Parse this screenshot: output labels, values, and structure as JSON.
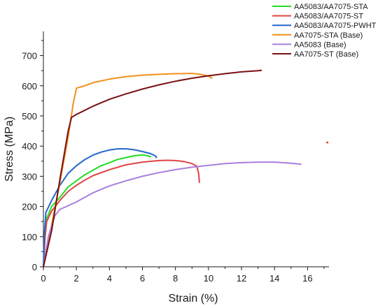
{
  "chart_data": {
    "type": "line",
    "title": "",
    "xlabel": "Strain (%)",
    "ylabel": "Stress (MPa)",
    "xlim": [
      0,
      17.3
    ],
    "ylim": [
      0,
      780
    ],
    "xticks": [
      0,
      2,
      4,
      6,
      8,
      10,
      12,
      14,
      16
    ],
    "yticks": [
      0,
      100,
      200,
      300,
      400,
      500,
      600,
      700
    ],
    "grid": false,
    "legend_position": "top-right",
    "series": [
      {
        "name": "AA5083/AA7075-STA",
        "color": "#22dd22",
        "points": [
          [
            0,
            0
          ],
          [
            0.1,
            100
          ],
          [
            0.2,
            160
          ],
          [
            0.5,
            200
          ],
          [
            1.0,
            230
          ],
          [
            1.5,
            265
          ],
          [
            2.0,
            285
          ],
          [
            2.5,
            305
          ],
          [
            3.0,
            320
          ],
          [
            3.5,
            335
          ],
          [
            4.0,
            345
          ],
          [
            4.5,
            356
          ],
          [
            5.0,
            362
          ],
          [
            5.5,
            368
          ],
          [
            6.0,
            371
          ],
          [
            6.3,
            368
          ],
          [
            6.5,
            365
          ]
        ]
      },
      {
        "name": "AA5083/AA7075-ST",
        "color": "#dd4444",
        "points": [
          [
            0,
            0
          ],
          [
            0.1,
            100
          ],
          [
            0.2,
            150
          ],
          [
            0.5,
            185
          ],
          [
            1.0,
            220
          ],
          [
            1.5,
            250
          ],
          [
            2.0,
            270
          ],
          [
            2.5,
            287
          ],
          [
            3.0,
            302
          ],
          [
            4.0,
            322
          ],
          [
            5.0,
            338
          ],
          [
            6.0,
            347
          ],
          [
            7.0,
            352
          ],
          [
            7.5,
            353
          ],
          [
            8.0,
            352
          ],
          [
            8.5,
            349
          ],
          [
            9.0,
            342
          ],
          [
            9.3,
            333
          ],
          [
            9.4,
            310
          ],
          [
            9.45,
            280
          ]
        ]
      },
      {
        "name": "AA5083/AA7075-PWHT",
        "color": "#2266cc",
        "points": [
          [
            0,
            0
          ],
          [
            0.05,
            100
          ],
          [
            0.15,
            180
          ],
          [
            0.5,
            220
          ],
          [
            1.0,
            270
          ],
          [
            1.5,
            310
          ],
          [
            2.0,
            335
          ],
          [
            2.5,
            355
          ],
          [
            3.0,
            370
          ],
          [
            3.5,
            380
          ],
          [
            4.0,
            387
          ],
          [
            4.5,
            391
          ],
          [
            5.0,
            391
          ],
          [
            5.5,
            388
          ],
          [
            6.0,
            382
          ],
          [
            6.5,
            375
          ],
          [
            6.8,
            367
          ],
          [
            6.85,
            362
          ]
        ]
      },
      {
        "name": "AA7075-STA (Base)",
        "color": "#f0901c",
        "points": [
          [
            0,
            0
          ],
          [
            1.0,
            280
          ],
          [
            1.5,
            430
          ],
          [
            1.8,
            540
          ],
          [
            2.0,
            592
          ],
          [
            2.5,
            600
          ],
          [
            3.0,
            610
          ],
          [
            4.0,
            622
          ],
          [
            5.0,
            630
          ],
          [
            6.0,
            635
          ],
          [
            7.0,
            638
          ],
          [
            8.0,
            640
          ],
          [
            9.0,
            641
          ],
          [
            9.5,
            638
          ],
          [
            10.0,
            632
          ],
          [
            10.2,
            625
          ]
        ]
      },
      {
        "name": "AA5083 (Base)",
        "color": "#a97fdd",
        "points": [
          [
            0,
            0
          ],
          [
            0.3,
            100
          ],
          [
            0.7,
            170
          ],
          [
            1.0,
            190
          ],
          [
            2.0,
            215
          ],
          [
            3.0,
            245
          ],
          [
            4.0,
            268
          ],
          [
            5.0,
            285
          ],
          [
            6.0,
            300
          ],
          [
            7.0,
            312
          ],
          [
            8.0,
            322
          ],
          [
            9.0,
            330
          ],
          [
            10.0,
            336
          ],
          [
            11.0,
            342
          ],
          [
            12.0,
            345
          ],
          [
            13.0,
            347
          ],
          [
            14.0,
            347
          ],
          [
            15.0,
            343
          ],
          [
            15.6,
            340
          ]
        ]
      },
      {
        "name": "AA7075-ST (Base)",
        "color": "#7a1010",
        "points": [
          [
            0,
            0
          ],
          [
            0.5,
            120
          ],
          [
            1.0,
            290
          ],
          [
            1.5,
            450
          ],
          [
            1.7,
            495
          ],
          [
            2.0,
            505
          ],
          [
            3.0,
            532
          ],
          [
            4.0,
            555
          ],
          [
            5.0,
            573
          ],
          [
            6.0,
            589
          ],
          [
            7.0,
            603
          ],
          [
            8.0,
            615
          ],
          [
            9.0,
            625
          ],
          [
            10.0,
            633
          ],
          [
            11.0,
            640
          ],
          [
            12.0,
            646
          ],
          [
            13.0,
            650
          ],
          [
            13.2,
            651
          ]
        ]
      }
    ],
    "annotations": [
      {
        "text": "",
        "x": 17.2,
        "y": 412,
        "color": "#dd4444"
      }
    ]
  }
}
